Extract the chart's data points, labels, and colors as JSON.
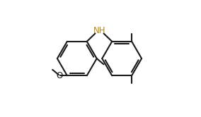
{
  "bg": "#ffffff",
  "lc": "#1a1a1a",
  "nh_color": "#b8860b",
  "lw": 1.5,
  "figsize": [
    2.84,
    1.66
  ],
  "dpi": 100,
  "r1cx": 0.28,
  "r1cy": 0.5,
  "r2cx": 0.7,
  "r2cy": 0.5,
  "ring_r": 0.185,
  "ao": 0
}
